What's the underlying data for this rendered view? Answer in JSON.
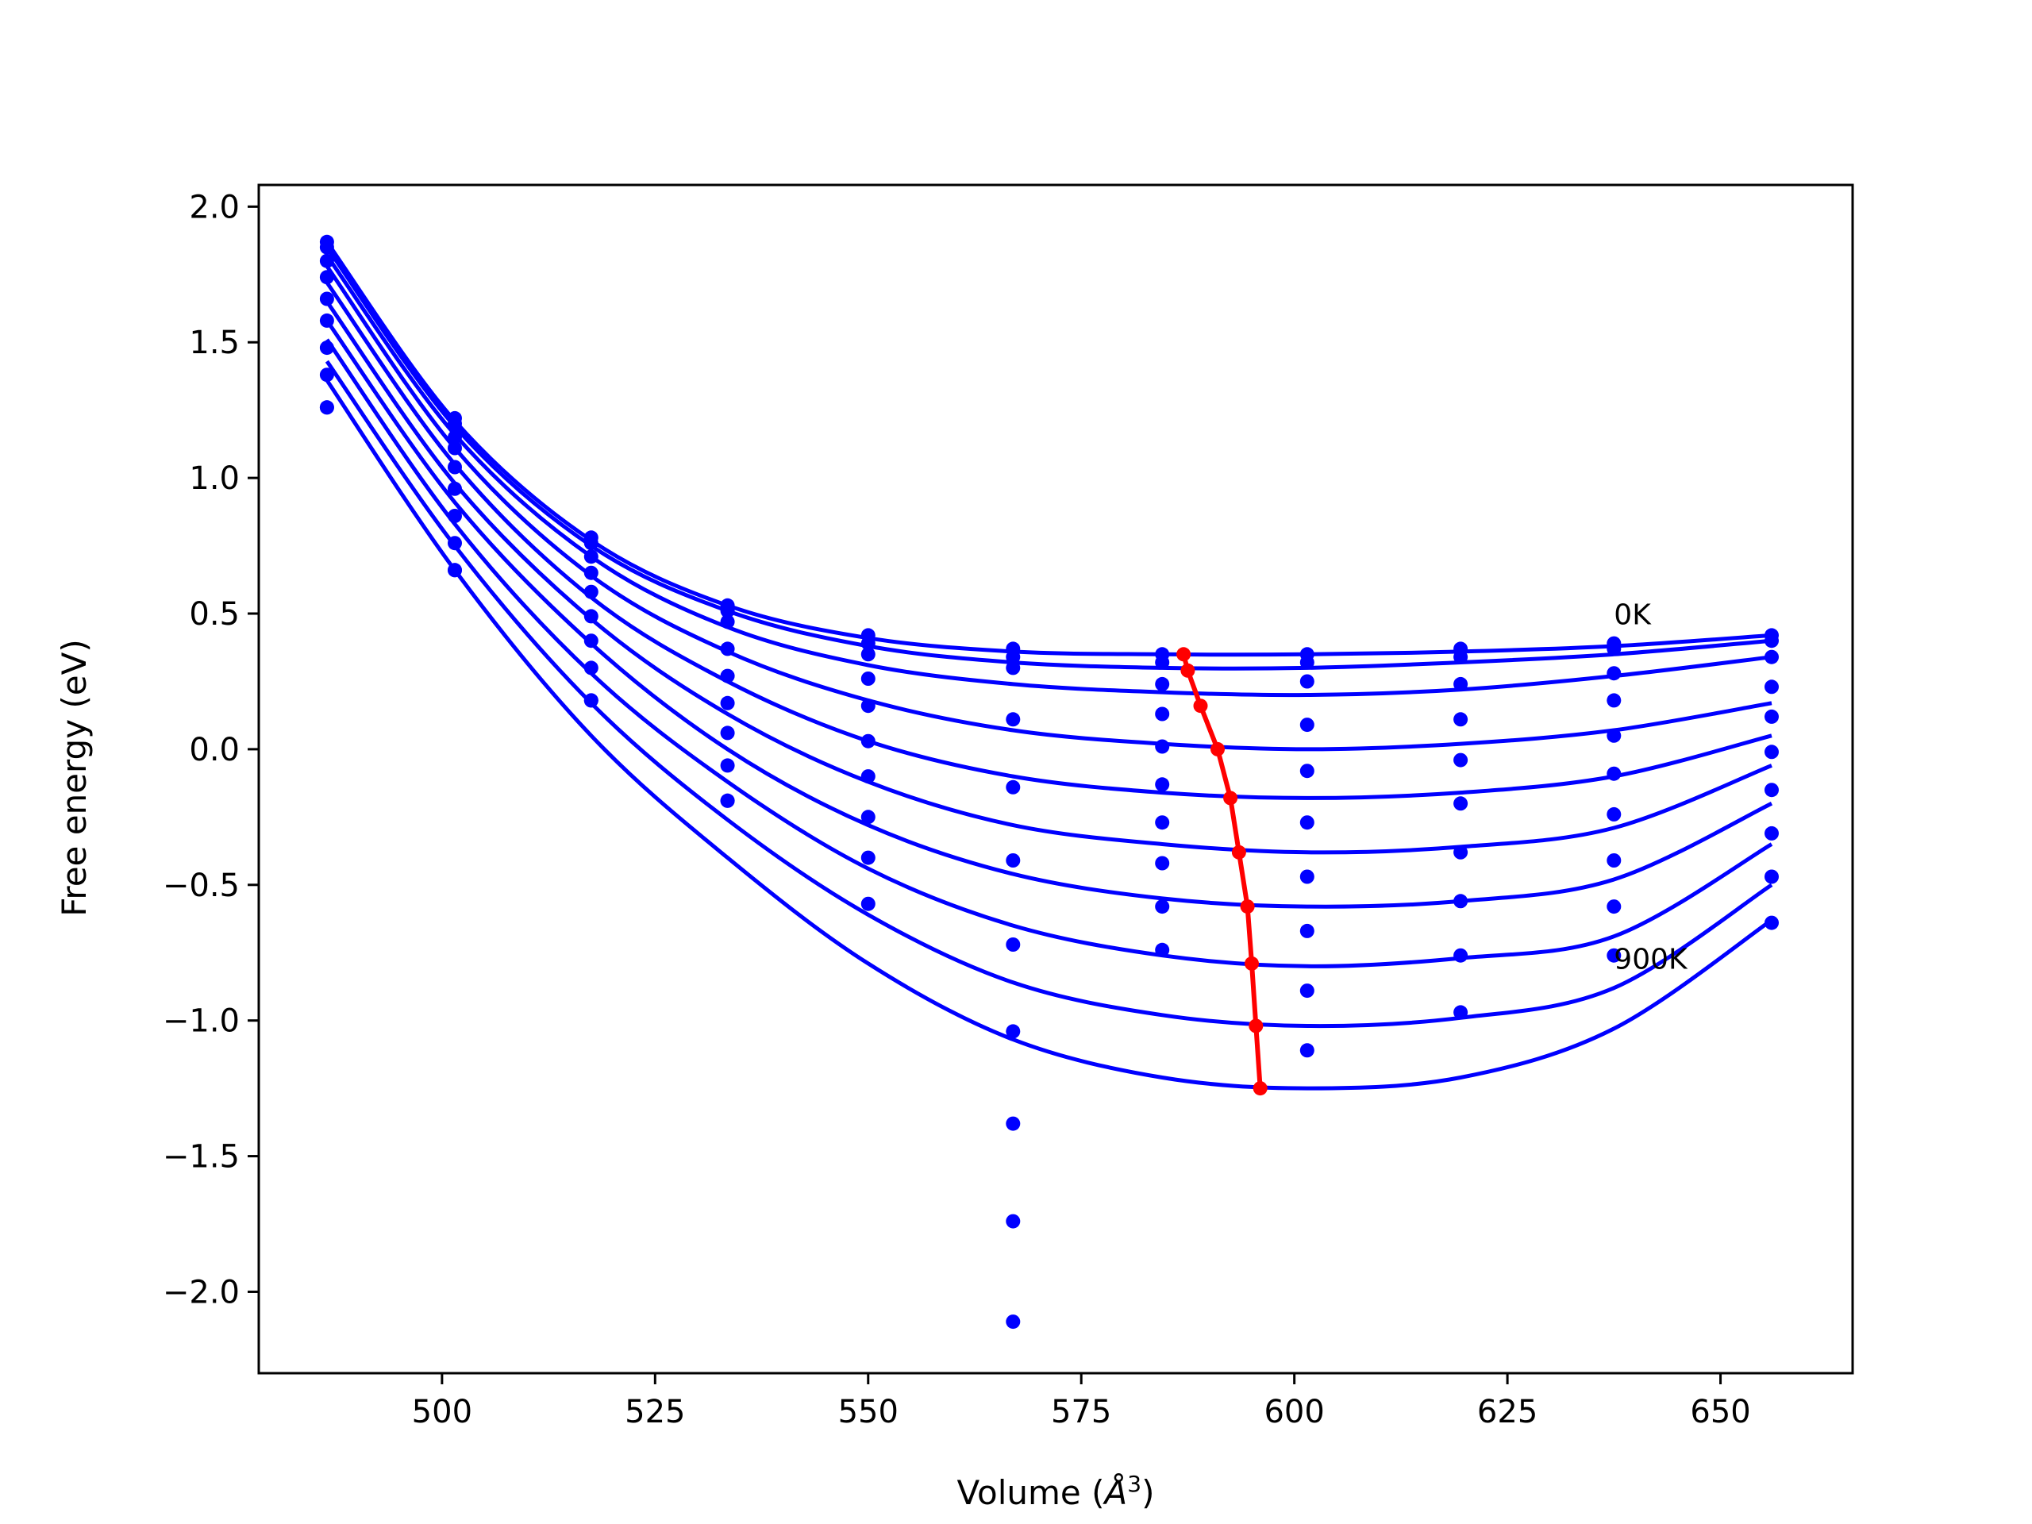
{
  "chart_data": {
    "type": "scatter",
    "title": "",
    "xlabel": "Volume ($\\AA^3$)",
    "xlabel_text": "Volume (",
    "xlabel_unit_base": "Å",
    "xlabel_unit_exp": "3",
    "xlabel_close": ")",
    "ylabel": "Free energy (eV)",
    "xlim": [
      478.5,
      665.5
    ],
    "ylim": [
      -2.3,
      2.08
    ],
    "xticks": [
      500,
      525,
      550,
      575,
      600,
      625,
      650
    ],
    "xtick_labels": [
      "500",
      "525",
      "550",
      "575",
      "600",
      "625",
      "650"
    ],
    "yticks": [
      2.0,
      1.5,
      1.0,
      0.5,
      0.0,
      -0.5,
      -1.0,
      -1.5,
      -2.0
    ],
    "ytick_labels": [
      "2.0",
      "1.5",
      "1.0",
      "0.5",
      "0.0",
      "−0.5",
      "−1.0",
      "−1.5",
      "−2.0"
    ],
    "grid": false,
    "colors": {
      "points": "#0000ff",
      "fits": "#0000ff",
      "minimum": "#ff0000"
    },
    "volumes": [
      486.5,
      501.5,
      517.5,
      533.5,
      550,
      567,
      584.5,
      601.5,
      619.5,
      637.5,
      656
    ],
    "series": [
      {
        "label": "0K",
        "values": [
          1.87,
          1.22,
          0.78,
          0.53,
          0.42,
          0.37,
          0.35,
          0.35,
          0.37,
          0.39,
          0.42
        ],
        "fit": [
          1.87,
          1.21,
          0.77,
          0.53,
          0.41,
          0.36,
          0.35,
          0.35,
          0.36,
          0.38,
          0.42
        ]
      },
      {
        "values": [
          1.85,
          1.2,
          0.76,
          0.51,
          0.39,
          0.34,
          0.32,
          0.32,
          0.34,
          0.37,
          0.4
        ],
        "fit": [
          1.85,
          1.19,
          0.75,
          0.51,
          0.38,
          0.32,
          0.3,
          0.3,
          0.32,
          0.35,
          0.4
        ]
      },
      {
        "values": [
          1.8,
          1.15,
          0.71,
          0.47,
          0.35,
          0.3,
          0.24,
          0.25,
          0.24,
          0.28,
          0.34
        ],
        "fit": [
          1.82,
          1.16,
          0.71,
          0.45,
          0.31,
          0.24,
          0.21,
          0.2,
          0.22,
          0.27,
          0.34
        ]
      },
      {
        "values": [
          1.74,
          1.11,
          0.65,
          0.37,
          0.26,
          0.11,
          0.13,
          0.09,
          0.11,
          0.18,
          0.23
        ],
        "fit": [
          1.78,
          1.11,
          0.64,
          0.36,
          0.18,
          0.07,
          0.02,
          0.0,
          0.02,
          0.07,
          0.17
        ]
      },
      {
        "values": [
          1.66,
          1.04,
          0.58,
          0.27,
          0.16,
          -0.14,
          0.01,
          -0.08,
          -0.04,
          0.05,
          0.12
        ],
        "fit": [
          1.72,
          1.05,
          0.56,
          0.25,
          0.03,
          -0.1,
          -0.16,
          -0.18,
          -0.16,
          -0.1,
          0.05
        ]
      },
      {
        "values": [
          1.58,
          0.96,
          0.49,
          0.17,
          0.03,
          -0.41,
          -0.13,
          -0.27,
          -0.2,
          -0.09,
          -0.01
        ],
        "fit": [
          1.65,
          0.98,
          0.48,
          0.13,
          -0.12,
          -0.28,
          -0.35,
          -0.38,
          -0.36,
          -0.29,
          -0.06
        ]
      },
      {
        "values": [
          1.48,
          0.86,
          0.4,
          0.06,
          -0.1,
          -0.72,
          -0.27,
          -0.47,
          -0.38,
          -0.24,
          -0.15
        ],
        "fit": [
          1.58,
          0.91,
          0.39,
          0.0,
          -0.28,
          -0.46,
          -0.55,
          -0.58,
          -0.56,
          -0.48,
          -0.2
        ]
      },
      {
        "values": [
          1.38,
          0.76,
          0.3,
          -0.06,
          -0.25,
          -1.04,
          -0.42,
          -0.67,
          -0.56,
          -0.41,
          -0.31
        ],
        "fit": [
          1.51,
          0.83,
          0.28,
          -0.12,
          -0.44,
          -0.65,
          -0.76,
          -0.8,
          -0.77,
          -0.69,
          -0.35
        ]
      },
      {
        "values": [
          1.26,
          0.66,
          0.18,
          -0.19,
          -0.4,
          -1.38,
          -0.58,
          -0.89,
          -0.76,
          -0.58,
          -0.47
        ],
        "fit": [
          1.43,
          0.75,
          0.17,
          -0.26,
          -0.61,
          -0.86,
          -0.98,
          -1.02,
          -0.99,
          -0.88,
          -0.5
        ]
      },
      {
        "label": "900K",
        "values": [
          1.26,
          0.66,
          0.18,
          -0.19,
          -0.57,
          -1.74,
          -0.74,
          -1.11,
          -0.97,
          -0.76,
          -0.64
        ],
        "fit": [
          1.36,
          0.66,
          0.05,
          -0.4,
          -0.79,
          -1.07,
          -1.21,
          -1.25,
          -1.21,
          -1.03,
          -0.63
        ]
      }
    ],
    "extra_points": [
      {
        "x": 567,
        "y": -2.11
      }
    ],
    "minimum_locus": {
      "x": [
        587,
        587.5,
        589,
        591,
        592.5,
        593.5,
        594.5,
        595,
        595.5,
        596
      ],
      "y": [
        0.35,
        0.29,
        0.16,
        0.0,
        -0.18,
        -0.38,
        -0.58,
        -0.79,
        -1.02,
        -1.25
      ]
    },
    "annotations": [
      {
        "text": "0K",
        "x": 637.5,
        "y": 0.46
      },
      {
        "text": "900K",
        "x": 637.5,
        "y": -0.81
      }
    ]
  }
}
